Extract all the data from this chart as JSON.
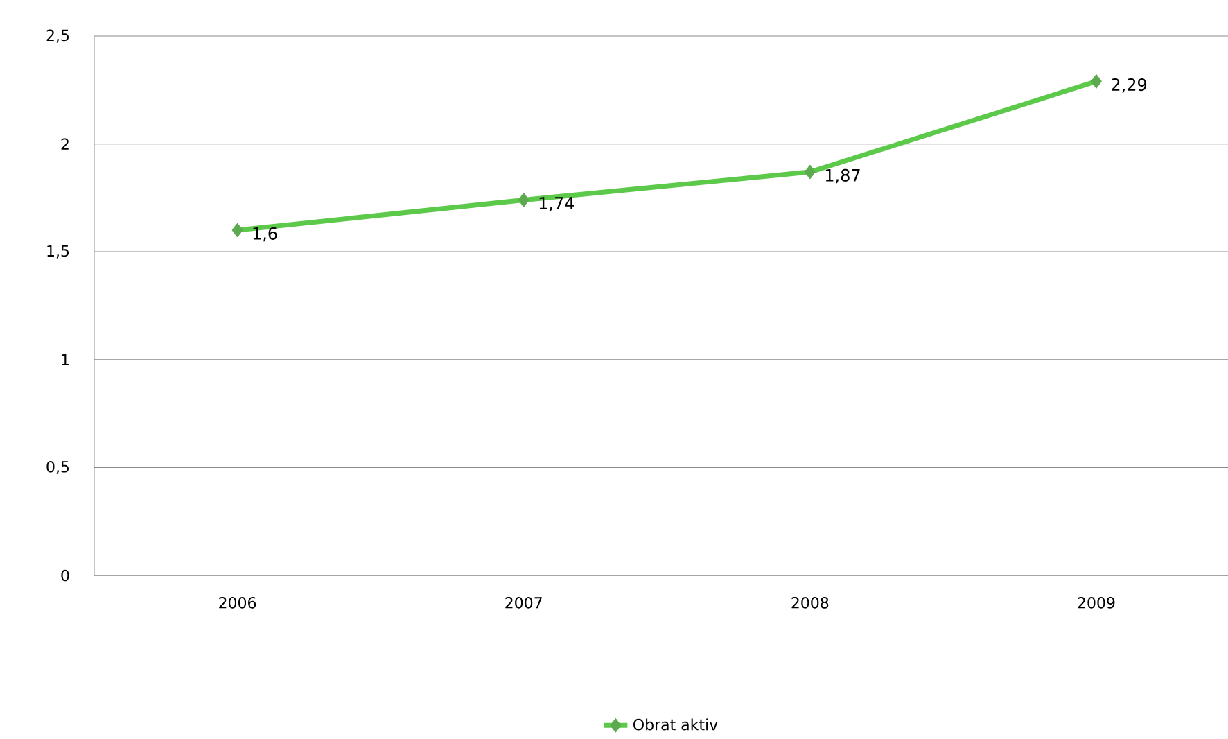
{
  "chart_data": {
    "type": "line",
    "categories": [
      "2006",
      "2007",
      "2008",
      "2009"
    ],
    "series": [
      {
        "name": "Obrat aktiv",
        "color": "#5cc94a",
        "values": [
          1.6,
          1.74,
          1.87,
          2.29
        ],
        "value_labels": [
          "1,6",
          "1,74",
          "1,87",
          "2,29"
        ]
      }
    ],
    "ylim": [
      0,
      2.5
    ],
    "yticks": [
      0,
      {
        "value": 0.5,
        "label": "0,5"
      },
      1,
      {
        "value": 1.5,
        "label": "1,5"
      },
      2,
      {
        "value": 2.5,
        "label": "2,5"
      }
    ],
    "grid": "y",
    "legend": "bottom",
    "marker": "diamond",
    "line_style": "solid"
  }
}
